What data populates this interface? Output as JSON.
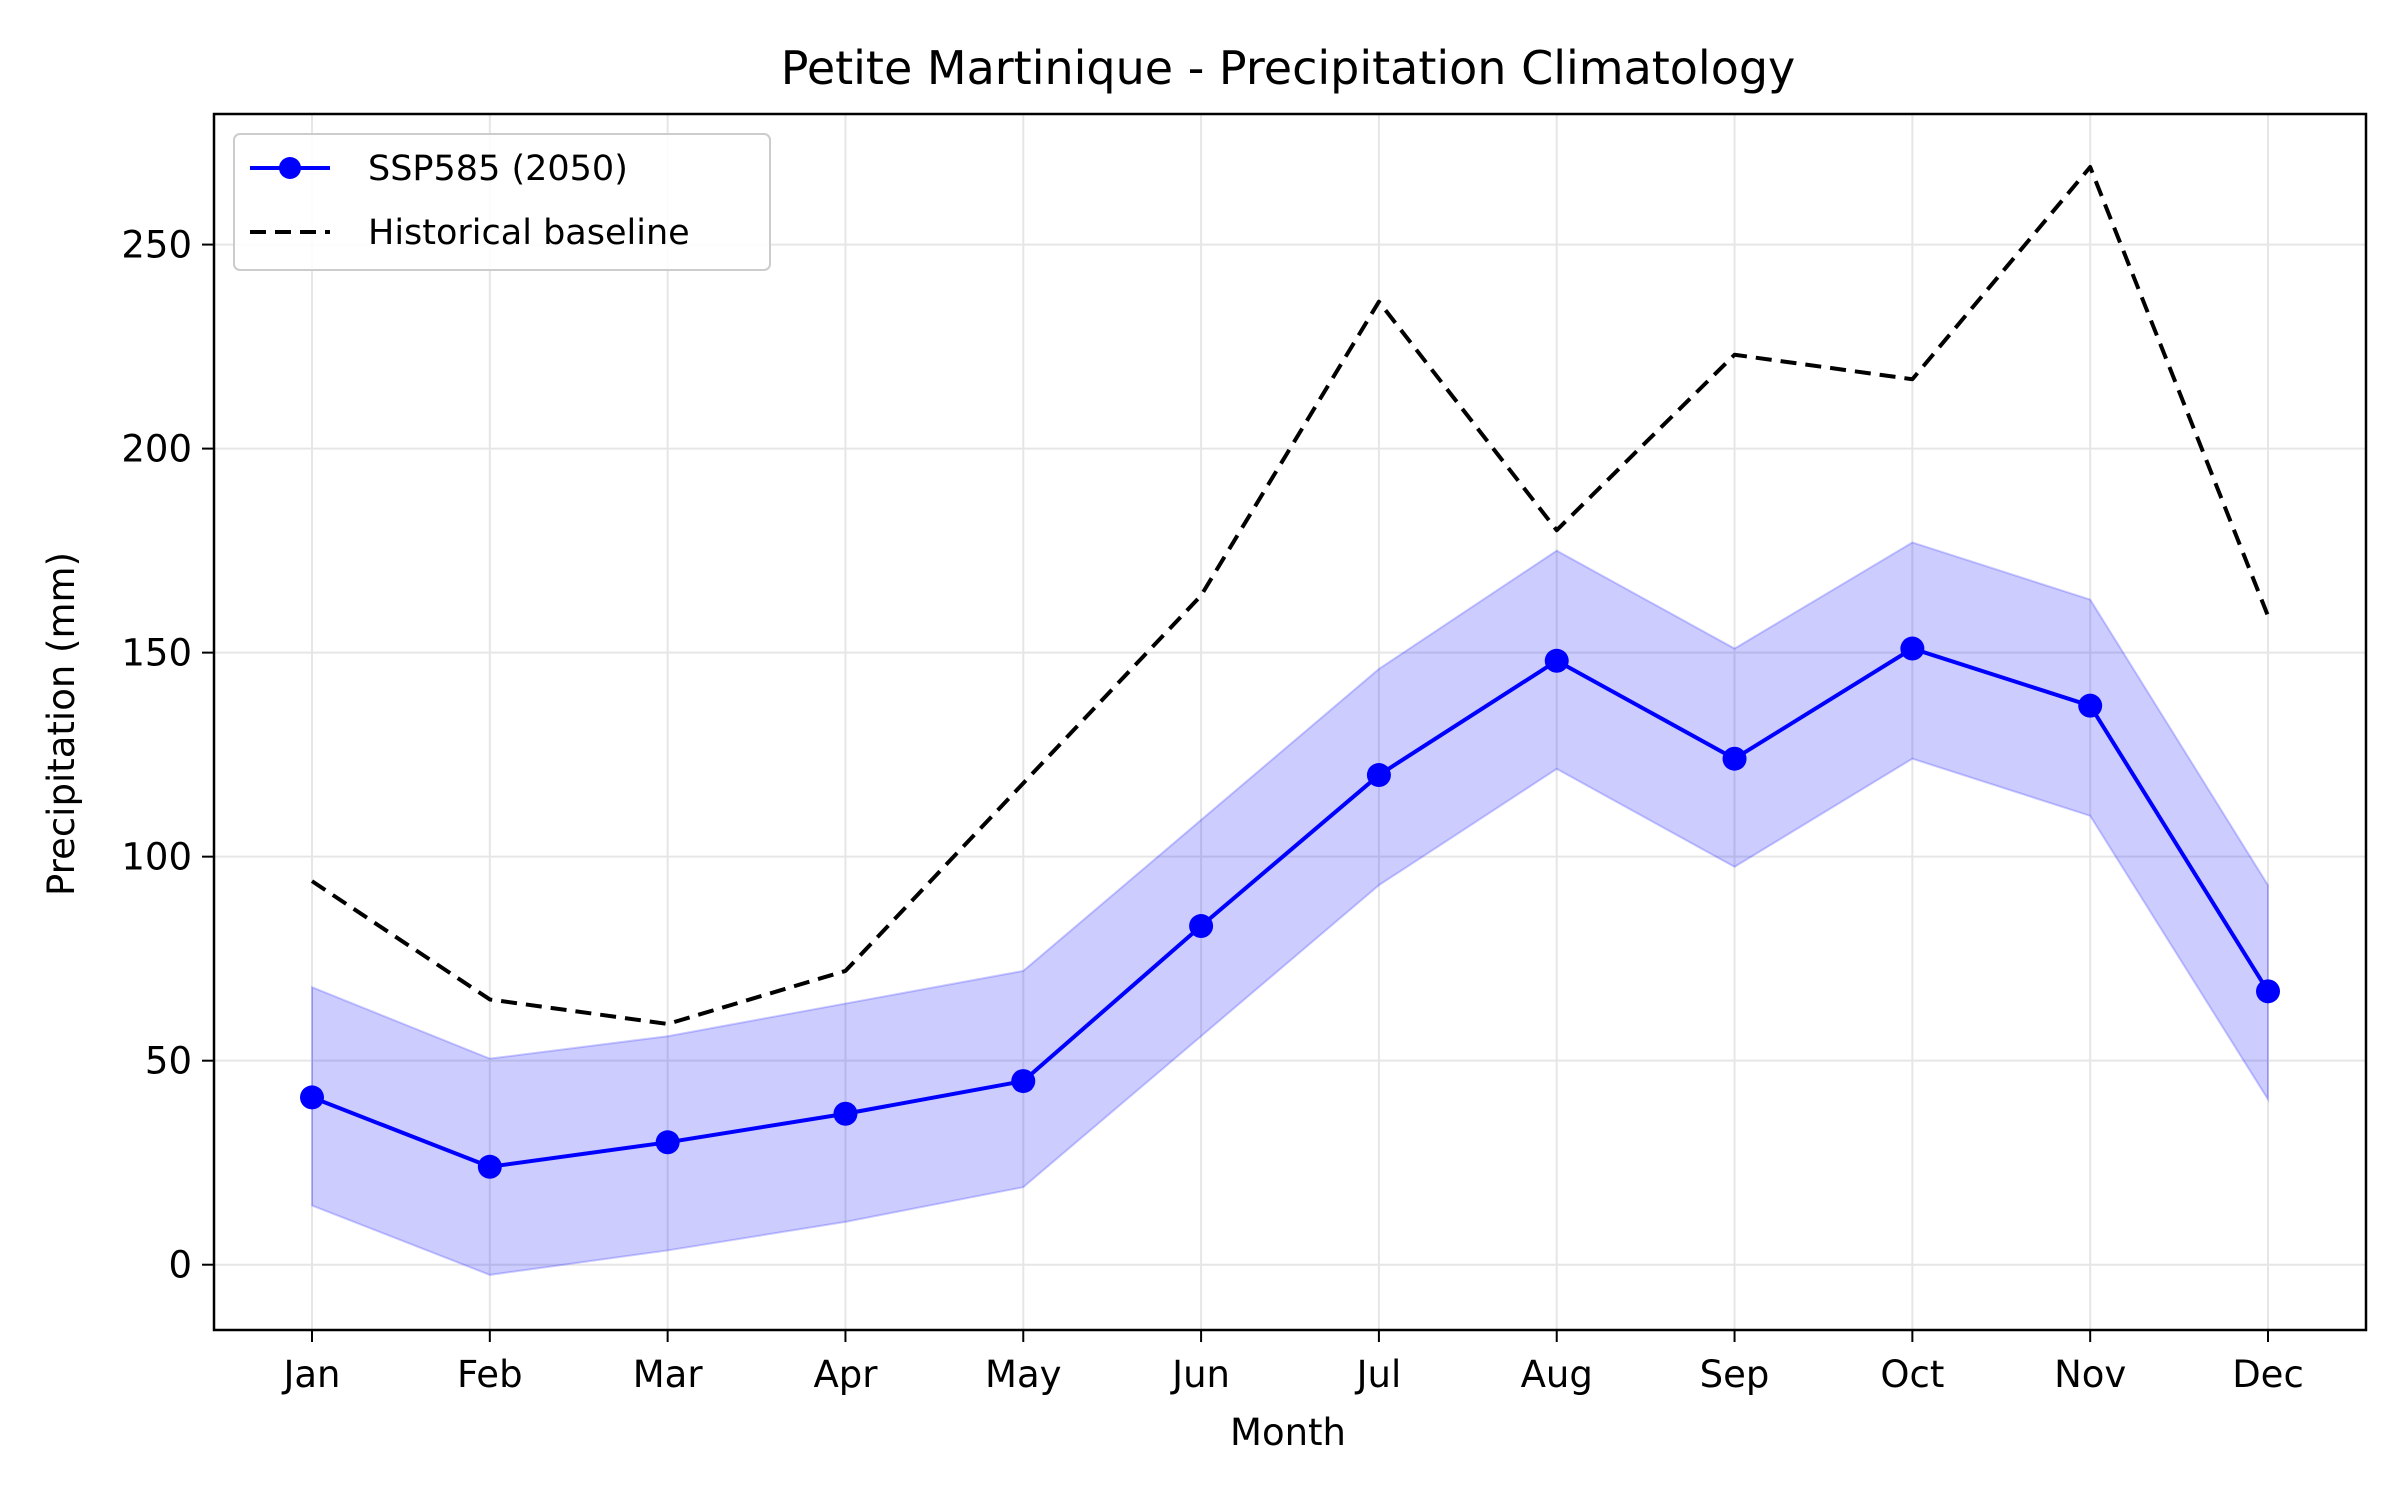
{
  "chart_data": {
    "type": "line",
    "title": "Petite Martinique - Precipitation Climatology",
    "xlabel": "Month",
    "ylabel": "Precipitation (mm)",
    "categories": [
      "Jan",
      "Feb",
      "Mar",
      "Apr",
      "May",
      "Jun",
      "Jul",
      "Aug",
      "Sep",
      "Oct",
      "Nov",
      "Dec"
    ],
    "ylim": [
      -16,
      282
    ],
    "yticks": [
      0,
      50,
      100,
      150,
      200,
      250
    ],
    "grid": true,
    "legend_position": "top-left",
    "series": [
      {
        "name": "SSP585 (2050)",
        "style": "solid-line-with-markers",
        "color": "#0000ff",
        "values": [
          41,
          24,
          30,
          37,
          45,
          83,
          120,
          148,
          124,
          151,
          137,
          67
        ],
        "band_upper": [
          68,
          50.5,
          56,
          64,
          72,
          109,
          146,
          175,
          151,
          177,
          163,
          93
        ],
        "band_lower": [
          14.5,
          -2.5,
          3.5,
          10.5,
          19,
          56,
          93,
          121.5,
          97.5,
          124,
          110,
          40.5
        ],
        "band_color": "#0000ff"
      },
      {
        "name": "Historical baseline",
        "style": "dashed-line",
        "color": "#000000",
        "values": [
          94,
          65,
          59,
          72,
          118,
          164,
          236,
          180,
          223,
          217,
          269,
          159
        ]
      }
    ]
  }
}
